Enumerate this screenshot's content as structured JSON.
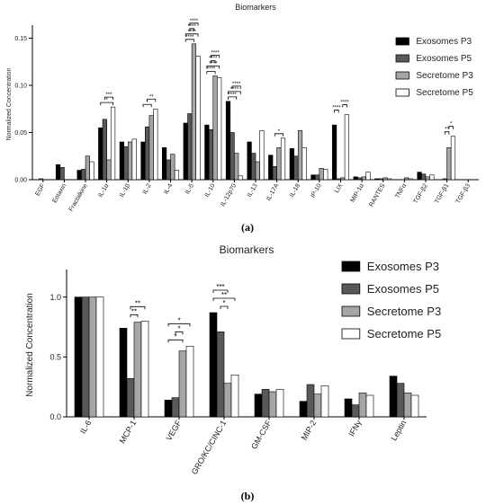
{
  "figure": {
    "panel_a_label": "(a)",
    "panel_b_label": "(b)"
  },
  "chart_data": [
    {
      "type": "bar",
      "title": "Biomarkers",
      "xlabel": "",
      "ylabel": "Normalized Concentration",
      "ylim": [
        0,
        0.16
      ],
      "yticks": [
        "0.00",
        "0.05",
        "0.10",
        "0.15"
      ],
      "legend_position": "top-right",
      "grid": false,
      "categories": [
        "EGF",
        "Eotaxin",
        "Fractalkine",
        "IL-1α",
        "IL-1β",
        "IL-2",
        "IL-4",
        "IL-5",
        "IL-10",
        "IL-12p70",
        "IL-13",
        "IL-17A",
        "IL-18",
        "IP-10",
        "LIX",
        "MIP-1α",
        "RANTES",
        "TNFα",
        "TGF-β2",
        "TGF-β1",
        "TGF-β3"
      ],
      "series": [
        {
          "name": "Exosomes P3",
          "color": "#000000",
          "values": [
            0.0,
            0.016,
            0.01,
            0.055,
            0.04,
            0.04,
            0.034,
            0.06,
            0.058,
            0.083,
            0.04,
            0.026,
            0.033,
            0.005,
            0.058,
            0.003,
            0.001,
            0.0,
            0.008,
            0.0,
            0.0
          ]
        },
        {
          "name": "Exosomes P5",
          "color": "#595959",
          "values": [
            0.001,
            0.013,
            0.011,
            0.064,
            0.035,
            0.056,
            0.021,
            0.07,
            0.053,
            0.05,
            0.028,
            0.014,
            0.025,
            0.005,
            0.001,
            0.002,
            0.001,
            0.0,
            0.006,
            0.001,
            0.0
          ]
        },
        {
          "name": "Secretome P3",
          "color": "#a6a6a6",
          "values": [
            0.0,
            0.0,
            0.025,
            0.021,
            0.04,
            0.068,
            0.027,
            0.144,
            0.11,
            0.028,
            0.019,
            0.034,
            0.052,
            0.012,
            0.002,
            0.003,
            0.002,
            0.002,
            0.003,
            0.034,
            0.0
          ]
        },
        {
          "name": "Secretome P5",
          "color": "#ffffff",
          "values": [
            0.0,
            0.0,
            0.019,
            0.077,
            0.043,
            0.075,
            0.01,
            0.131,
            0.108,
            0.004,
            0.052,
            0.044,
            0.034,
            0.011,
            0.069,
            0.008,
            0.001,
            0.001,
            0.005,
            0.046,
            0.0
          ]
        }
      ],
      "significance": [
        {
          "category": "IL-1α",
          "from": 0,
          "to": 3,
          "label": "*"
        },
        {
          "category": "IL-1α",
          "from": 1,
          "to": 3,
          "label": "***"
        },
        {
          "category": "IL-2",
          "from": 0,
          "to": 2,
          "label": "*"
        },
        {
          "category": "IL-2",
          "from": 1,
          "to": 3,
          "label": "**"
        },
        {
          "category": "IL-5",
          "from": 0,
          "to": 2,
          "label": "****"
        },
        {
          "category": "IL-5",
          "from": 0,
          "to": 3,
          "label": "****"
        },
        {
          "category": "IL-5",
          "from": 1,
          "to": 2,
          "label": "****"
        },
        {
          "category": "IL-5",
          "from": 1,
          "to": 3,
          "label": "****"
        },
        {
          "category": "IL-10",
          "from": 0,
          "to": 2,
          "label": "****"
        },
        {
          "category": "IL-10",
          "from": 0,
          "to": 3,
          "label": "****"
        },
        {
          "category": "IL-10",
          "from": 1,
          "to": 2,
          "label": "****"
        },
        {
          "category": "IL-10",
          "from": 1,
          "to": 3,
          "label": "****"
        },
        {
          "category": "IL-12p70",
          "from": 0,
          "to": 2,
          "label": "****"
        },
        {
          "category": "IL-12p70",
          "from": 0,
          "to": 3,
          "label": "****"
        },
        {
          "category": "IL-12p70",
          "from": 1,
          "to": 3,
          "label": "****"
        },
        {
          "category": "IL-17A",
          "from": 1,
          "to": 3,
          "label": "*"
        },
        {
          "category": "LIX",
          "from": 0,
          "to": 1,
          "label": "****"
        },
        {
          "category": "LIX",
          "from": 2,
          "to": 3,
          "label": "****"
        },
        {
          "category": "TGF-β1",
          "from": 1,
          "to": 2,
          "label": "**"
        },
        {
          "category": "TGF-β1",
          "from": 2,
          "to": 3,
          "label": "*"
        }
      ]
    },
    {
      "type": "bar",
      "title": "Biomarkers",
      "xlabel": "",
      "ylabel": "Normalized Concentration",
      "ylim": [
        0,
        1.2
      ],
      "yticks": [
        "0.0",
        "0.5",
        "1.0"
      ],
      "legend_position": "top-right",
      "grid": false,
      "categories": [
        "IL-6",
        "MCP-1",
        "VEGF",
        "GRO/KC/CINC-1",
        "GM-CSF",
        "MIP-2",
        "IFNγ",
        "Leptin"
      ],
      "series": [
        {
          "name": "Exosomes P3",
          "color": "#000000",
          "values": [
            1.0,
            0.74,
            0.14,
            0.87,
            0.19,
            0.13,
            0.15,
            0.34
          ]
        },
        {
          "name": "Exosomes P5",
          "color": "#595959",
          "values": [
            1.0,
            0.32,
            0.16,
            0.71,
            0.23,
            0.27,
            0.1,
            0.28
          ]
        },
        {
          "name": "Secretome P3",
          "color": "#a6a6a6",
          "values": [
            1.0,
            0.79,
            0.55,
            0.28,
            0.21,
            0.19,
            0.2,
            0.2
          ]
        },
        {
          "name": "Secretome P5",
          "color": "#ffffff",
          "values": [
            1.0,
            0.8,
            0.59,
            0.35,
            0.23,
            0.26,
            0.18,
            0.18
          ]
        }
      ],
      "significance": [
        {
          "category": "MCP-1",
          "from": 1,
          "to": 2,
          "label": "**"
        },
        {
          "category": "MCP-1",
          "from": 1,
          "to": 3,
          "label": "**"
        },
        {
          "category": "VEGF",
          "from": 0,
          "to": 2,
          "label": "*"
        },
        {
          "category": "VEGF",
          "from": 1,
          "to": 2,
          "label": "*"
        },
        {
          "category": "VEGF",
          "from": 0,
          "to": 3,
          "label": "*"
        },
        {
          "category": "GRO/KC/CINC-1",
          "from": 1,
          "to": 2,
          "label": "*"
        },
        {
          "category": "GRO/KC/CINC-1",
          "from": 0,
          "to": 3,
          "label": "**"
        },
        {
          "category": "GRO/KC/CINC-1",
          "from": 0,
          "to": 2,
          "label": "***"
        }
      ]
    }
  ]
}
